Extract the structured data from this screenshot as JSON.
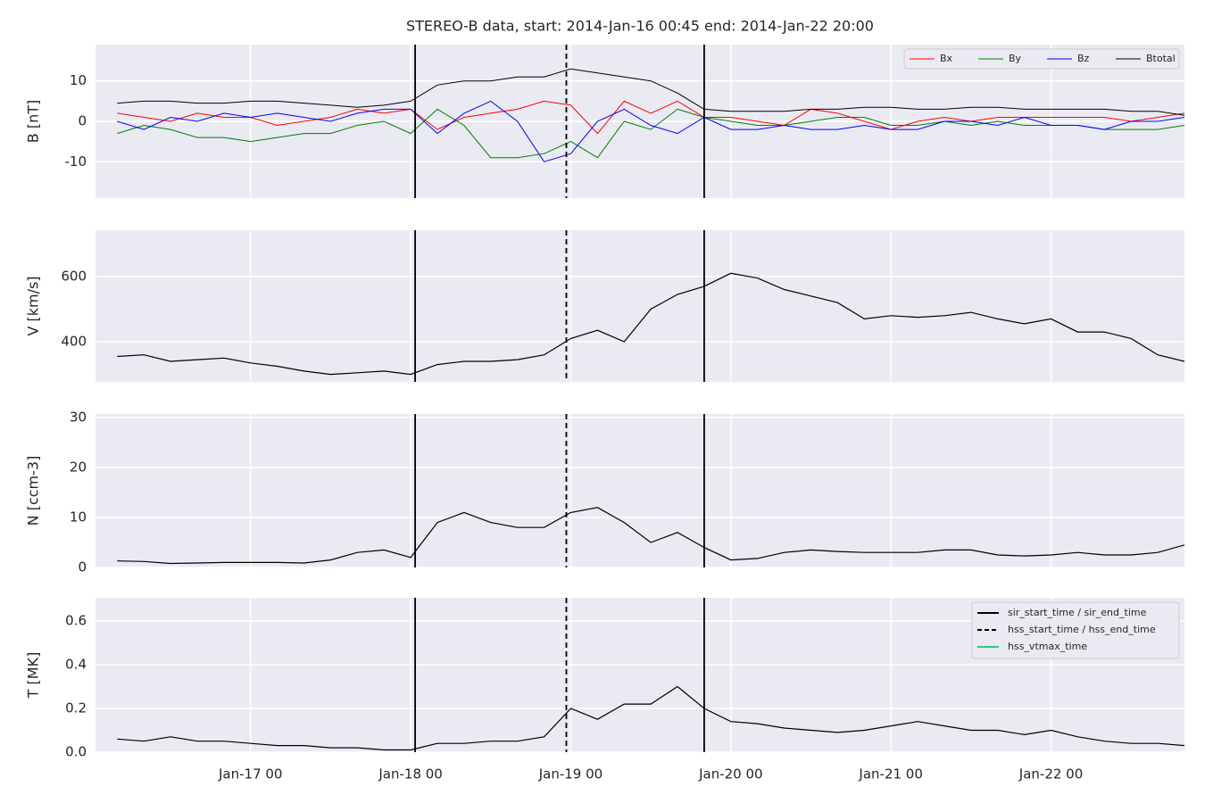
{
  "chart_data": [
    {
      "type": "line",
      "title": "STEREO-B data, start: 2014-Jan-16 00:45  end: 2014-Jan-22 20:00",
      "ylabel": "B [nT]",
      "xlim": [
        "Jan-16 00:45",
        "Jan-22 20:00"
      ],
      "x": [
        "Jan-16 04",
        "Jan-16 08",
        "Jan-16 12",
        "Jan-16 16",
        "Jan-16 20",
        "Jan-17 00",
        "Jan-17 04",
        "Jan-17 08",
        "Jan-17 12",
        "Jan-17 16",
        "Jan-17 20",
        "Jan-18 00",
        "Jan-18 04",
        "Jan-18 08",
        "Jan-18 12",
        "Jan-18 16",
        "Jan-18 20",
        "Jan-19 00",
        "Jan-19 04",
        "Jan-19 08",
        "Jan-19 12",
        "Jan-19 16",
        "Jan-19 20",
        "Jan-20 00",
        "Jan-20 04",
        "Jan-20 08",
        "Jan-20 12",
        "Jan-20 16",
        "Jan-20 20",
        "Jan-21 00",
        "Jan-21 04",
        "Jan-21 08",
        "Jan-21 12",
        "Jan-21 16",
        "Jan-21 20",
        "Jan-22 00",
        "Jan-22 04",
        "Jan-22 08",
        "Jan-22 12",
        "Jan-22 16",
        "Jan-22 20"
      ],
      "ylim": [
        -19,
        19
      ],
      "yticks": [
        -10,
        0,
        10
      ],
      "grid": true,
      "legend": "upper right",
      "series": [
        {
          "name": "Bx",
          "color": "#ff0000",
          "values": [
            2,
            1,
            0,
            2,
            1,
            1,
            -1,
            0,
            1,
            3,
            2,
            3,
            -2,
            1,
            2,
            3,
            5,
            4,
            -3,
            5,
            2,
            5,
            1,
            1,
            0,
            -1,
            3,
            2,
            0,
            -2,
            0,
            1,
            0,
            1,
            1,
            1,
            1,
            1,
            0,
            1,
            2
          ]
        },
        {
          "name": "By",
          "color": "#008000",
          "values": [
            -3,
            -1,
            -2,
            -4,
            -4,
            -5,
            -4,
            -3,
            -3,
            -1,
            0,
            -3,
            3,
            -1,
            -9,
            -9,
            -8,
            -5,
            -9,
            0,
            -2,
            3,
            1,
            0,
            -1,
            -1,
            0,
            1,
            1,
            -1,
            -1,
            0,
            -1,
            0,
            -1,
            -1,
            -1,
            -2,
            -2,
            -2,
            -1
          ]
        },
        {
          "name": "Bz",
          "color": "#0000ff",
          "values": [
            0,
            -2,
            1,
            0,
            2,
            1,
            2,
            1,
            0,
            2,
            3,
            3,
            -3,
            2,
            5,
            0,
            -10,
            -8,
            0,
            3,
            -1,
            -3,
            1,
            -2,
            -2,
            -1,
            -2,
            -2,
            -1,
            -2,
            -2,
            0,
            0,
            -1,
            1,
            -1,
            -1,
            -2,
            0,
            0,
            1
          ]
        },
        {
          "name": "Btotal",
          "color": "#000000",
          "values": [
            4.5,
            5,
            5,
            4.5,
            4.5,
            5,
            5,
            4.5,
            4,
            3.5,
            4,
            5,
            9,
            10,
            10,
            11,
            11,
            13,
            12,
            11,
            10,
            7,
            3,
            2.5,
            2.5,
            2.5,
            3,
            3,
            3.5,
            3.5,
            3,
            3,
            3.5,
            3.5,
            3,
            3,
            3,
            3,
            2.5,
            2.5,
            1.5
          ]
        }
      ]
    },
    {
      "type": "line",
      "ylabel": "V [km/s]",
      "xlim": [
        "Jan-16 00:45",
        "Jan-22 20:00"
      ],
      "x": [
        "Jan-16 04",
        "Jan-16 08",
        "Jan-16 12",
        "Jan-16 16",
        "Jan-16 20",
        "Jan-17 00",
        "Jan-17 04",
        "Jan-17 08",
        "Jan-17 12",
        "Jan-17 16",
        "Jan-17 20",
        "Jan-18 00",
        "Jan-18 04",
        "Jan-18 08",
        "Jan-18 12",
        "Jan-18 16",
        "Jan-18 20",
        "Jan-19 00",
        "Jan-19 04",
        "Jan-19 08",
        "Jan-19 12",
        "Jan-19 16",
        "Jan-19 20",
        "Jan-20 00",
        "Jan-20 04",
        "Jan-20 08",
        "Jan-20 12",
        "Jan-20 16",
        "Jan-20 20",
        "Jan-21 00",
        "Jan-21 04",
        "Jan-21 08",
        "Jan-21 12",
        "Jan-21 16",
        "Jan-21 20",
        "Jan-22 00",
        "Jan-22 04",
        "Jan-22 08",
        "Jan-22 12",
        "Jan-22 16",
        "Jan-22 20"
      ],
      "ylim": [
        277,
        742
      ],
      "yticks": [
        400,
        600
      ],
      "grid": true,
      "values": [
        355,
        360,
        340,
        345,
        350,
        335,
        325,
        310,
        300,
        305,
        310,
        300,
        330,
        340,
        340,
        345,
        360,
        410,
        435,
        400,
        500,
        545,
        570,
        610,
        595,
        560,
        540,
        520,
        470,
        480,
        475,
        480,
        490,
        470,
        455,
        470,
        430,
        430,
        410,
        360,
        340
      ],
      "color": "#000000"
    },
    {
      "type": "line",
      "ylabel": "N [ccm-3]",
      "xlim": [
        "Jan-16 00:45",
        "Jan-22 20:00"
      ],
      "x": [
        "Jan-16 04",
        "Jan-16 08",
        "Jan-16 12",
        "Jan-16 16",
        "Jan-16 20",
        "Jan-17 00",
        "Jan-17 04",
        "Jan-17 08",
        "Jan-17 12",
        "Jan-17 16",
        "Jan-17 20",
        "Jan-18 00",
        "Jan-18 04",
        "Jan-18 08",
        "Jan-18 12",
        "Jan-18 16",
        "Jan-18 20",
        "Jan-19 00",
        "Jan-19 04",
        "Jan-19 08",
        "Jan-19 12",
        "Jan-19 16",
        "Jan-19 20",
        "Jan-20 00",
        "Jan-20 04",
        "Jan-20 08",
        "Jan-20 12",
        "Jan-20 16",
        "Jan-20 20",
        "Jan-21 00",
        "Jan-21 04",
        "Jan-21 08",
        "Jan-21 12",
        "Jan-21 16",
        "Jan-21 20",
        "Jan-22 00",
        "Jan-22 04",
        "Jan-22 08",
        "Jan-22 12",
        "Jan-22 16",
        "Jan-22 20"
      ],
      "ylim": [
        0,
        30.7
      ],
      "yticks": [
        0,
        10,
        20,
        30
      ],
      "grid": true,
      "values": [
        1.3,
        1.2,
        0.8,
        0.9,
        1,
        1,
        1,
        0.9,
        1.5,
        3,
        3.5,
        2,
        9,
        11,
        9,
        8,
        8,
        11,
        12,
        9,
        5,
        7,
        4,
        1.5,
        1.8,
        3,
        3.5,
        3.2,
        3,
        3,
        3,
        3.5,
        3.5,
        2.5,
        2.3,
        2.5,
        3,
        2.5,
        2.5,
        3,
        4.5
      ],
      "color": "#000000"
    },
    {
      "type": "line",
      "ylabel": "T [MK]",
      "xlim": [
        "Jan-16 00:45",
        "Jan-22 20:00"
      ],
      "x": [
        "Jan-16 04",
        "Jan-16 08",
        "Jan-16 12",
        "Jan-16 16",
        "Jan-16 20",
        "Jan-17 00",
        "Jan-17 04",
        "Jan-17 08",
        "Jan-17 12",
        "Jan-17 16",
        "Jan-17 20",
        "Jan-18 00",
        "Jan-18 04",
        "Jan-18 08",
        "Jan-18 12",
        "Jan-18 16",
        "Jan-18 20",
        "Jan-19 00",
        "Jan-19 04",
        "Jan-19 08",
        "Jan-19 12",
        "Jan-19 16",
        "Jan-19 20",
        "Jan-20 00",
        "Jan-20 04",
        "Jan-20 08",
        "Jan-20 12",
        "Jan-20 16",
        "Jan-20 20",
        "Jan-21 00",
        "Jan-21 04",
        "Jan-21 08",
        "Jan-21 12",
        "Jan-21 16",
        "Jan-21 20",
        "Jan-22 00",
        "Jan-22 04",
        "Jan-22 08",
        "Jan-22 12",
        "Jan-22 16",
        "Jan-22 20"
      ],
      "xticks": [
        "Jan-17 00",
        "Jan-18 00",
        "Jan-19 00",
        "Jan-20 00",
        "Jan-21 00",
        "Jan-22 00"
      ],
      "ylim": [
        0,
        0.706
      ],
      "yticks": [
        {
          "value": 0,
          "label": "0.0"
        },
        {
          "value": 0.2,
          "label": "0.2"
        },
        {
          "value": 0.4,
          "label": "0.4"
        },
        {
          "value": 0.6,
          "label": "0.6"
        }
      ],
      "grid": true,
      "legend": "upper right",
      "values": [
        0.06,
        0.05,
        0.07,
        0.05,
        0.05,
        0.04,
        0.03,
        0.03,
        0.02,
        0.02,
        0.01,
        0.01,
        0.04,
        0.04,
        0.05,
        0.05,
        0.07,
        0.2,
        0.15,
        0.22,
        0.22,
        0.3,
        0.2,
        0.14,
        0.13,
        0.11,
        0.1,
        0.09,
        0.1,
        0.12,
        0.14,
        0.12,
        0.1,
        0.1,
        0.08,
        0.1,
        0.07,
        0.05,
        0.04,
        0.04,
        0.03
      ],
      "color": "#000000",
      "vlines": [
        {
          "name": "sir_start_time / sir_end_time",
          "color": "#000000",
          "linestyle": "solid",
          "x": [
            "Jan-18 00:40",
            "Jan-19 20:00"
          ]
        },
        {
          "name": "hss_start_time / hss_end_time",
          "color": "#000000",
          "linestyle": "dashed",
          "x": [
            "Jan-18 23:20"
          ]
        },
        {
          "name": "hss_vtmax_time",
          "color": "#2ecc71",
          "linestyle": "solid",
          "x": []
        }
      ]
    }
  ]
}
